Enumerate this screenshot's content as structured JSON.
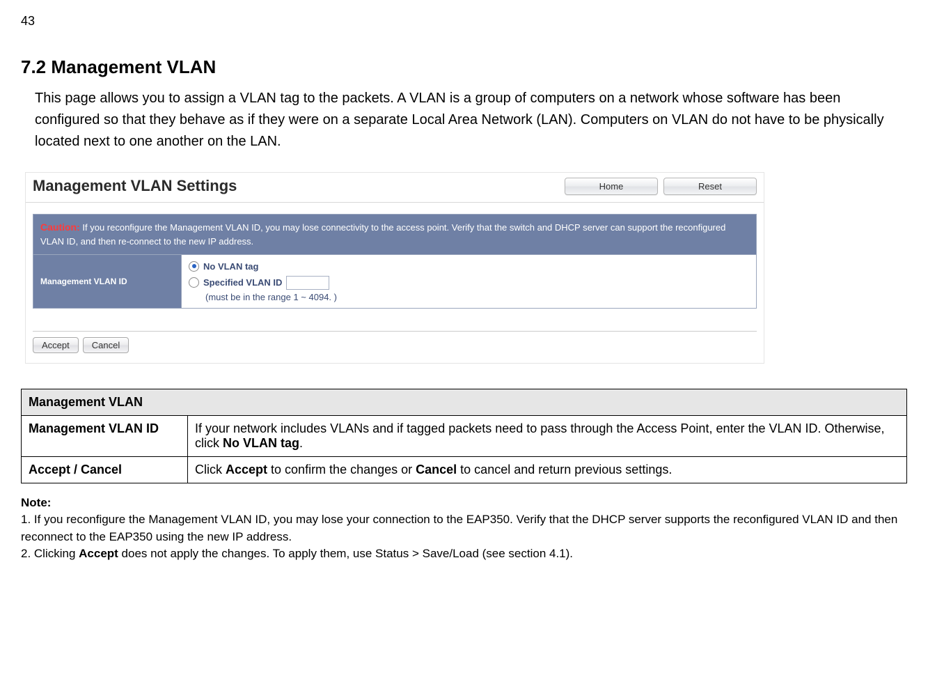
{
  "page_number": "43",
  "heading": "7.2   Management VLAN",
  "intro_text": "This page allows you to assign a VLAN tag to the packets. A VLAN is a group of computers on a network whose software has been configured so that they behave as if they were on a separate Local Area Network (LAN). Computers on VLAN do not have to be physically located next to one another on the LAN.",
  "screenshot": {
    "title": "Management VLAN Settings",
    "home_btn": "Home",
    "reset_btn": "Reset",
    "caution_label": "Caution:",
    "caution_text": " If you reconfigure the Management VLAN ID, you may lose connectivity to the access point. Verify that the switch and DHCP server can support the reconfigured VLAN ID, and then re-connect to the new IP address.",
    "row_label": "Management VLAN ID",
    "opt_no_tag": "No VLAN tag",
    "opt_specified": "Specified VLAN ID",
    "range_hint": "(must be in the range 1 ~ 4094. )",
    "accept_btn": "Accept",
    "cancel_btn": "Cancel"
  },
  "table": {
    "header": "Management VLAN",
    "row1_label": "Management VLAN ID",
    "row1_text_a": "If your network includes VLANs and if tagged packets need to pass through the Access Point, enter the VLAN ID. Otherwise, click ",
    "row1_text_bold": "No VLAN tag",
    "row1_text_b": ".",
    "row2_label": "Accept / Cancel",
    "row2_text_a": "Click ",
    "row2_text_bold1": "Accept",
    "row2_text_b": " to confirm the changes or ",
    "row2_text_bold2": "Cancel",
    "row2_text_c": " to cancel and return previous settings."
  },
  "note": {
    "label": "Note:",
    "line1": "1. If you reconfigure the Management VLAN ID, you may lose your connection to the EAP350. Verify that the DHCP server supports the reconfigured VLAN ID and then reconnect to the EAP350 using the new IP address.",
    "line2_a": "2. Clicking ",
    "line2_bold": "Accept",
    "line2_b": " does not apply the changes. To apply them, use Status > Save/Load (see section 4.1)."
  }
}
